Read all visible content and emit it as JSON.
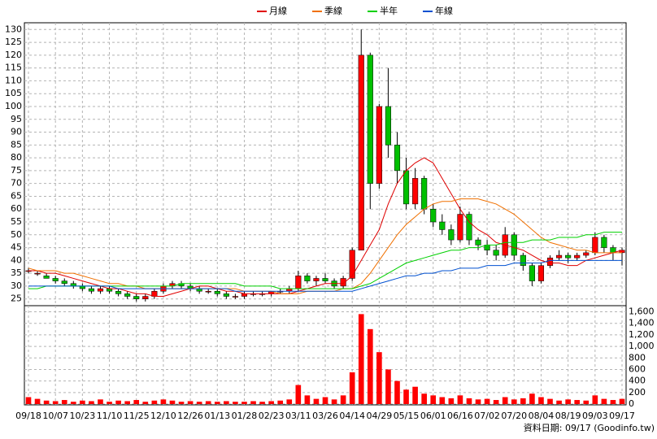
{
  "chart_data": {
    "type": "candlestick",
    "categories": [
      "09/18",
      null,
      null,
      "10/07",
      null,
      null,
      "10/23",
      null,
      null,
      "11/10",
      null,
      null,
      "11/25",
      null,
      null,
      "12/10",
      null,
      null,
      "12/26",
      null,
      null,
      "01/13",
      null,
      null,
      "01/28",
      null,
      null,
      "02/23",
      null,
      null,
      "03/11",
      null,
      null,
      "03/26",
      null,
      null,
      "04/14",
      null,
      null,
      "04/29",
      null,
      null,
      "05/15",
      null,
      null,
      "06/01",
      null,
      null,
      "06/16",
      null,
      null,
      "07/02",
      null,
      null,
      "07/20",
      null,
      null,
      "08/04",
      null,
      null,
      "08/19",
      null,
      null,
      "09/03",
      null,
      null,
      "09/17"
    ],
    "open": [
      36,
      35,
      34,
      33,
      32,
      31,
      30,
      29,
      28,
      29,
      28,
      27,
      26,
      25,
      26,
      28,
      30,
      31,
      30,
      29,
      28,
      28,
      27,
      26,
      26,
      27,
      27,
      27,
      28,
      28,
      29,
      34,
      32,
      33,
      32,
      30,
      33,
      44,
      120,
      70,
      100,
      85,
      75,
      62,
      72,
      60,
      55,
      52,
      48,
      58,
      48,
      46,
      44,
      42,
      50,
      42,
      38,
      32,
      38,
      41,
      42,
      41,
      42,
      43,
      49,
      45,
      43
    ],
    "high": [
      37,
      36,
      35,
      34,
      33,
      32,
      31,
      30,
      30,
      30,
      29,
      28,
      27,
      27,
      29,
      31,
      32,
      32,
      31,
      30,
      29,
      29,
      28,
      27,
      28,
      28,
      28,
      28,
      29,
      30,
      36,
      35,
      34,
      35,
      33,
      34,
      45,
      130,
      121,
      101,
      115,
      90,
      80,
      76,
      73,
      62,
      58,
      54,
      61,
      59,
      49,
      48,
      46,
      53,
      51,
      43,
      39,
      39,
      42,
      44,
      43,
      43,
      44,
      51,
      50,
      46,
      45
    ],
    "low": [
      35,
      34,
      33,
      31,
      30,
      29,
      28,
      27,
      27,
      27,
      26,
      25,
      24,
      24,
      25,
      27,
      29,
      29,
      28,
      27,
      27,
      26,
      25,
      25,
      25,
      26,
      26,
      26,
      27,
      27,
      28,
      31,
      30,
      31,
      29,
      29,
      32,
      44,
      60,
      68,
      80,
      70,
      60,
      60,
      58,
      53,
      50,
      46,
      47,
      46,
      44,
      42,
      40,
      41,
      40,
      36,
      30,
      31,
      37,
      40,
      39,
      40,
      41,
      42,
      43,
      40,
      38
    ],
    "close": [
      36,
      35,
      33,
      32,
      31,
      30,
      29,
      28,
      29,
      28,
      27,
      26,
      25,
      26,
      28,
      30,
      31,
      30,
      29,
      28,
      28,
      27,
      26,
      26,
      27,
      27,
      27,
      28,
      28,
      29,
      34,
      32,
      33,
      32,
      30,
      33,
      44,
      120,
      70,
      100,
      85,
      75,
      62,
      72,
      60,
      55,
      52,
      48,
      58,
      48,
      46,
      44,
      42,
      50,
      42,
      38,
      32,
      38,
      41,
      42,
      41,
      42,
      43,
      49,
      45,
      43,
      44
    ],
    "volume": [
      120,
      90,
      60,
      50,
      70,
      40,
      60,
      50,
      80,
      40,
      60,
      50,
      70,
      40,
      60,
      80,
      60,
      40,
      50,
      40,
      50,
      40,
      50,
      40,
      40,
      50,
      40,
      50,
      60,
      80,
      330,
      150,
      90,
      120,
      80,
      150,
      550,
      1560,
      1300,
      900,
      600,
      400,
      250,
      300,
      180,
      150,
      120,
      100,
      150,
      100,
      80,
      90,
      70,
      120,
      80,
      100,
      180,
      120,
      90,
      60,
      80,
      70,
      60,
      150,
      90,
      70,
      90
    ],
    "up_color": "#ff0000",
    "down_color": "#00c000",
    "series": [
      {
        "name": "月線",
        "color": "#e00000",
        "values": [
          36,
          36,
          35,
          35,
          34,
          33,
          32,
          31,
          30,
          29,
          29,
          28,
          27,
          27,
          26,
          26,
          27,
          28,
          29,
          30,
          30,
          29,
          28,
          28,
          27,
          27,
          27,
          27,
          27,
          27,
          28,
          29,
          30,
          31,
          31,
          31,
          34,
          40,
          46,
          52,
          62,
          70,
          75,
          78,
          80,
          78,
          72,
          66,
          60,
          55,
          52,
          50,
          47,
          46,
          45,
          44,
          42,
          40,
          39,
          39,
          38,
          38,
          40,
          41,
          42,
          43,
          44
        ]
      },
      {
        "name": "季線",
        "color": "#f07000",
        "values": [
          37,
          36,
          36,
          36,
          35,
          35,
          34,
          33,
          32,
          31,
          31,
          30,
          30,
          29,
          29,
          29,
          29,
          29,
          29,
          29,
          29,
          29,
          29,
          29,
          28,
          28,
          28,
          28,
          27,
          27,
          27,
          28,
          28,
          28,
          28,
          29,
          29,
          31,
          35,
          40,
          45,
          50,
          54,
          57,
          60,
          62,
          63,
          63,
          64,
          64,
          64,
          63,
          62,
          60,
          58,
          55,
          52,
          49,
          47,
          46,
          45,
          44,
          44,
          43,
          43,
          43,
          43
        ]
      },
      {
        "name": "半年",
        "color": "#00d000",
        "values": [
          29,
          29,
          30,
          30,
          30,
          30,
          30,
          30,
          30,
          30,
          30,
          30,
          30,
          30,
          30,
          30,
          30,
          31,
          31,
          31,
          31,
          31,
          31,
          31,
          30,
          30,
          30,
          30,
          29,
          29,
          29,
          29,
          29,
          29,
          29,
          29,
          29,
          30,
          31,
          33,
          35,
          37,
          39,
          40,
          41,
          42,
          43,
          44,
          44,
          45,
          45,
          46,
          46,
          47,
          47,
          47,
          48,
          48,
          48,
          49,
          49,
          49,
          50,
          50,
          51,
          51,
          51
        ]
      },
      {
        "name": "年線",
        "color": "#0050d0",
        "values": [
          30,
          30,
          30,
          30,
          30,
          30,
          30,
          30,
          30,
          30,
          29,
          29,
          29,
          29,
          29,
          29,
          29,
          29,
          29,
          29,
          29,
          29,
          29,
          28,
          28,
          28,
          28,
          28,
          28,
          28,
          28,
          28,
          28,
          28,
          28,
          28,
          28,
          29,
          30,
          31,
          32,
          33,
          34,
          34,
          35,
          35,
          36,
          36,
          37,
          37,
          37,
          38,
          38,
          38,
          39,
          39,
          39,
          39,
          40,
          40,
          40,
          40,
          40,
          40,
          40,
          40,
          40
        ]
      }
    ],
    "ylim": [
      23,
      132
    ],
    "yticks": [
      25,
      30,
      35,
      40,
      45,
      50,
      55,
      60,
      65,
      70,
      75,
      80,
      85,
      90,
      95,
      100,
      105,
      110,
      115,
      120,
      125,
      130
    ],
    "y2lim": [
      0,
      1650
    ],
    "y2ticks": [
      0,
      200,
      400,
      600,
      800,
      {
        "value": 1000,
        "label": "1,000"
      },
      {
        "value": 1200,
        "label": "1,200"
      },
      {
        "value": 1400,
        "label": "1,400"
      },
      {
        "value": 1600,
        "label": "1,600"
      }
    ],
    "grid": true,
    "footnote": "資料日期: 09/17 (Goodinfo.tw)"
  }
}
